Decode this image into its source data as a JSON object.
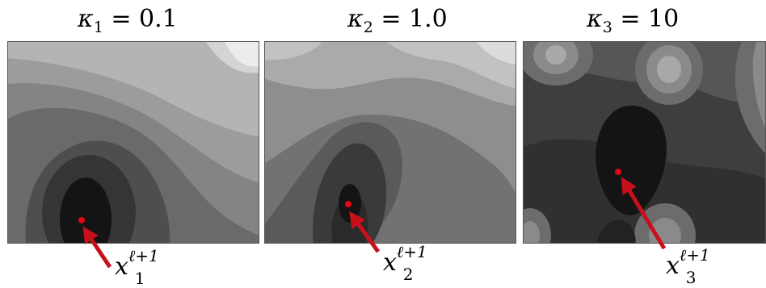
{
  "panels": [
    {
      "kappa_symbol": "κ",
      "kappa_index": "1",
      "equals": "=",
      "value": "0.1",
      "point_label": "x",
      "point_superscript": "ℓ+1",
      "point_subscript": "1"
    },
    {
      "kappa_symbol": "κ",
      "kappa_index": "2",
      "equals": "=",
      "value": "1.0",
      "point_label": "x",
      "point_superscript": "ℓ+1",
      "point_subscript": "2"
    },
    {
      "kappa_symbol": "κ",
      "kappa_index": "3",
      "equals": "=",
      "value": "10",
      "point_label": "x",
      "point_superscript": "ℓ+1",
      "point_subscript": "3"
    }
  ],
  "colors": {
    "minimum_point": "#e30613",
    "arrow": "#c8101a",
    "contour_dark": "#111111",
    "contour_light": "#ececec"
  }
}
